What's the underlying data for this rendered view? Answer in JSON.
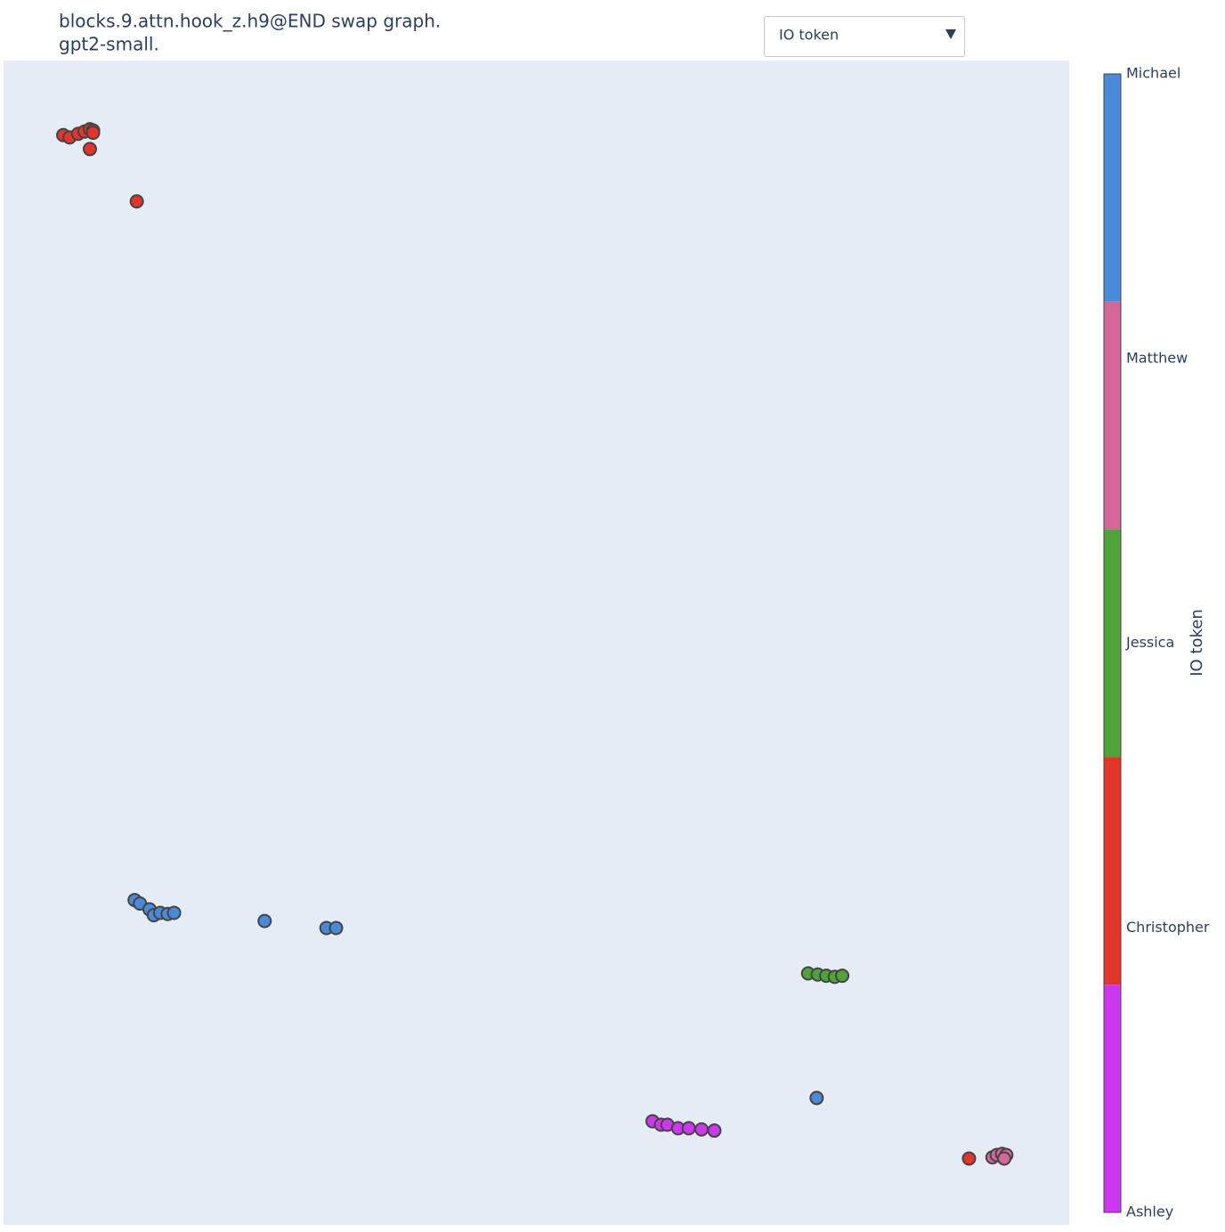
{
  "chart_data": {
    "type": "scatter",
    "title": "blocks.9.attn.hook_z.h9@END swap graph.",
    "subtitle": "gpt2-small.",
    "xlim": [
      0,
      100
    ],
    "ylim": [
      0,
      100
    ],
    "colorbar_title": "IO token",
    "series": [
      {
        "name": "Ashley",
        "color": "#cc38f0",
        "x": [
          60.9,
          61.7,
          62.3,
          63.3,
          64.3,
          65.5,
          66.7
        ],
        "values": [
          8.9,
          8.6,
          8.6,
          8.3,
          8.3,
          8.2,
          8.1
        ]
      },
      {
        "name": "Christopher",
        "color": "#e3352a",
        "x": [
          5.6,
          6.2,
          7.0,
          7.6,
          8.1,
          8.4,
          8.4,
          8.1,
          12.5,
          90.6
        ],
        "values": [
          93.6,
          93.4,
          93.7,
          93.9,
          94.1,
          94.0,
          93.8,
          92.4,
          87.9,
          5.7
        ]
      },
      {
        "name": "Jessica",
        "color": "#50a23b",
        "x": [
          75.5,
          76.4,
          77.2,
          78.0,
          78.7
        ],
        "values": [
          21.6,
          21.5,
          21.4,
          21.3,
          21.4
        ]
      },
      {
        "name": "Matthew",
        "color": "#d2679a",
        "x": [
          92.8,
          93.2,
          93.7,
          94.1,
          93.9
        ],
        "values": [
          5.8,
          6.0,
          6.1,
          6.0,
          5.7
        ]
      },
      {
        "name": "Michael",
        "color": "#4a8ad8",
        "x": [
          12.3,
          12.8,
          13.7,
          14.1,
          14.7,
          15.4,
          16.0,
          24.5,
          30.3,
          31.2,
          76.3
        ],
        "values": [
          27.9,
          27.6,
          27.1,
          26.6,
          26.8,
          26.7,
          26.8,
          26.1,
          25.5,
          25.5,
          10.9
        ]
      }
    ]
  },
  "controls": {
    "dropdown_label": "IO token"
  }
}
